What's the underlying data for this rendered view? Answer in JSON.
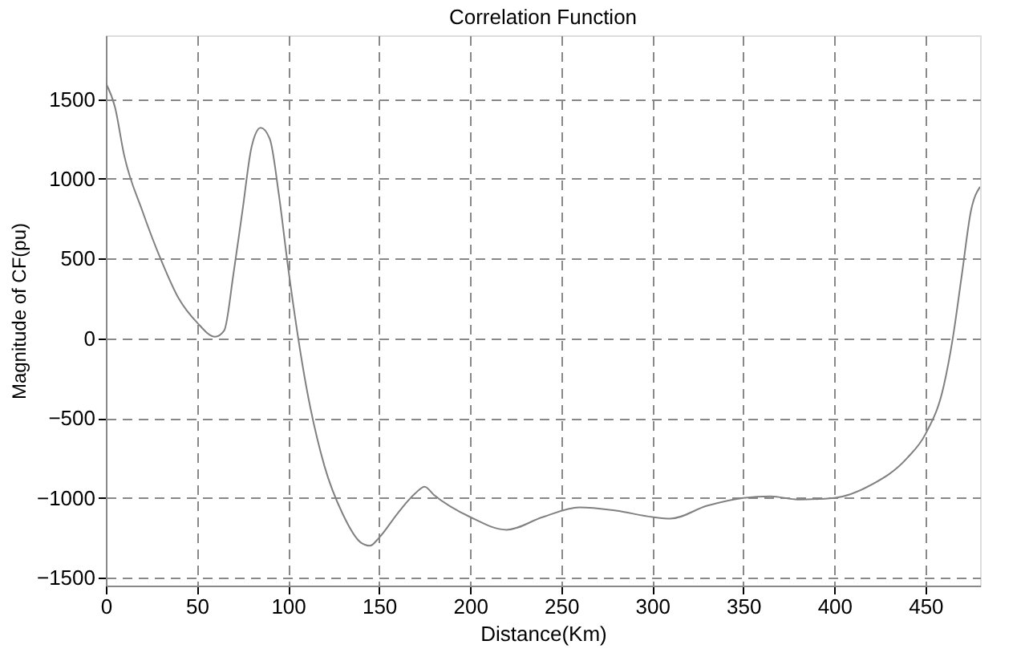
{
  "chart_data": {
    "type": "line",
    "title": "Correlation Function",
    "xlabel": "Distance(Km)",
    "ylabel": "Magnitude of CF(pu)",
    "x": [
      0,
      5,
      10,
      20,
      30,
      40,
      50,
      60,
      65,
      70,
      75,
      80,
      85,
      90,
      95,
      100,
      110,
      120,
      130,
      140,
      145,
      150,
      160,
      170,
      175,
      180,
      200,
      220,
      240,
      260,
      280,
      300,
      310,
      330,
      350,
      365,
      380,
      400,
      420,
      440,
      450,
      460,
      465,
      470,
      475,
      480
    ],
    "series": [
      {
        "color": "#808080",
        "values": [
          1600,
          1450,
          1150,
          800,
          500,
          250,
          100,
          10,
          50,
          400,
          800,
          1200,
          1320,
          1250,
          900,
          450,
          -300,
          -800,
          -1100,
          -1280,
          -1300,
          -1250,
          -1100,
          -970,
          -930,
          -980,
          -1120,
          -1200,
          -1120,
          -1060,
          -1080,
          -1120,
          -1130,
          -1050,
          -1000,
          -990,
          -1010,
          -1000,
          -920,
          -750,
          -600,
          -300,
          0,
          400,
          800,
          950
        ]
      }
    ],
    "xlim": [
      0,
      480
    ],
    "xticks": [
      0,
      50,
      100,
      150,
      200,
      250,
      300,
      350,
      400,
      450
    ],
    "ylim": [
      -1550,
      1900
    ],
    "yticks": [
      -1500,
      -1000,
      -500,
      0,
      500,
      1000,
      1500
    ],
    "grid": true,
    "line_style": "solid",
    "marker": "none"
  }
}
